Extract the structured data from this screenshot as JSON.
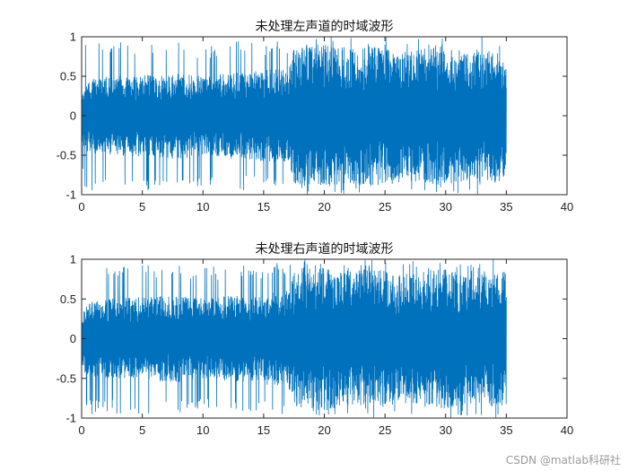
{
  "chart_data": [
    {
      "type": "line",
      "title": "未处理左声道的时域波形",
      "xlabel": "",
      "ylabel": "",
      "xlim": [
        0,
        40
      ],
      "ylim": [
        -1,
        1
      ],
      "xticks": [
        0,
        5,
        10,
        15,
        20,
        25,
        30,
        35,
        40
      ],
      "yticks": [
        1,
        0.5,
        0,
        -0.5,
        -1
      ],
      "xtick_labels": [
        "0",
        "5",
        "10",
        "15",
        "20",
        "25",
        "30",
        "35",
        "40"
      ],
      "ytick_labels": [
        "1",
        "0.5",
        "0",
        "-0.5",
        "-1"
      ],
      "grid": false,
      "color": "#0072BD",
      "duration": 35,
      "envelope": {
        "x": [
          0,
          0.3,
          2,
          5,
          8,
          10,
          13,
          15,
          17,
          17.5,
          18,
          20,
          22,
          24,
          26,
          28,
          30,
          32,
          34,
          34.8,
          35
        ],
        "dense": [
          0.3,
          0.45,
          0.5,
          0.52,
          0.55,
          0.5,
          0.55,
          0.58,
          0.6,
          0.85,
          0.9,
          0.9,
          0.85,
          0.9,
          0.8,
          0.85,
          0.88,
          0.8,
          0.82,
          0.85,
          0.6
        ],
        "peak": [
          0.6,
          0.95,
          0.95,
          0.95,
          0.95,
          0.9,
          0.95,
          0.95,
          0.95,
          1,
          1,
          1,
          1,
          1,
          1,
          1,
          1,
          1,
          1,
          1,
          0.9
        ]
      }
    },
    {
      "type": "line",
      "title": "未处理右声道的时域波形",
      "xlabel": "",
      "ylabel": "",
      "xlim": [
        0,
        40
      ],
      "ylim": [
        -1,
        1
      ],
      "xticks": [
        0,
        5,
        10,
        15,
        20,
        25,
        30,
        35,
        40
      ],
      "yticks": [
        1,
        0.5,
        0,
        -0.5,
        -1
      ],
      "xtick_labels": [
        "0",
        "5",
        "10",
        "15",
        "20",
        "25",
        "30",
        "35",
        "40"
      ],
      "ytick_labels": [
        "1",
        "0.5",
        "0",
        "-0.5",
        "-1"
      ],
      "grid": false,
      "color": "#0072BD",
      "duration": 35,
      "envelope": {
        "x": [
          0,
          0.3,
          2,
          5,
          8,
          10,
          13,
          15,
          17,
          17.5,
          18,
          20,
          22,
          24,
          26,
          28,
          30,
          32,
          34,
          34.8,
          35
        ],
        "dense": [
          0.3,
          0.45,
          0.5,
          0.52,
          0.55,
          0.5,
          0.55,
          0.58,
          0.6,
          0.85,
          0.9,
          0.9,
          0.85,
          0.9,
          0.8,
          0.85,
          0.88,
          0.8,
          0.82,
          0.85,
          0.6
        ],
        "peak": [
          0.6,
          0.95,
          0.95,
          0.95,
          0.95,
          0.9,
          0.95,
          0.95,
          0.95,
          1,
          1,
          1,
          1,
          1,
          1,
          1,
          1,
          1,
          1,
          1,
          0.9
        ]
      }
    }
  ],
  "watermark": "CSDN @matlab科研社"
}
